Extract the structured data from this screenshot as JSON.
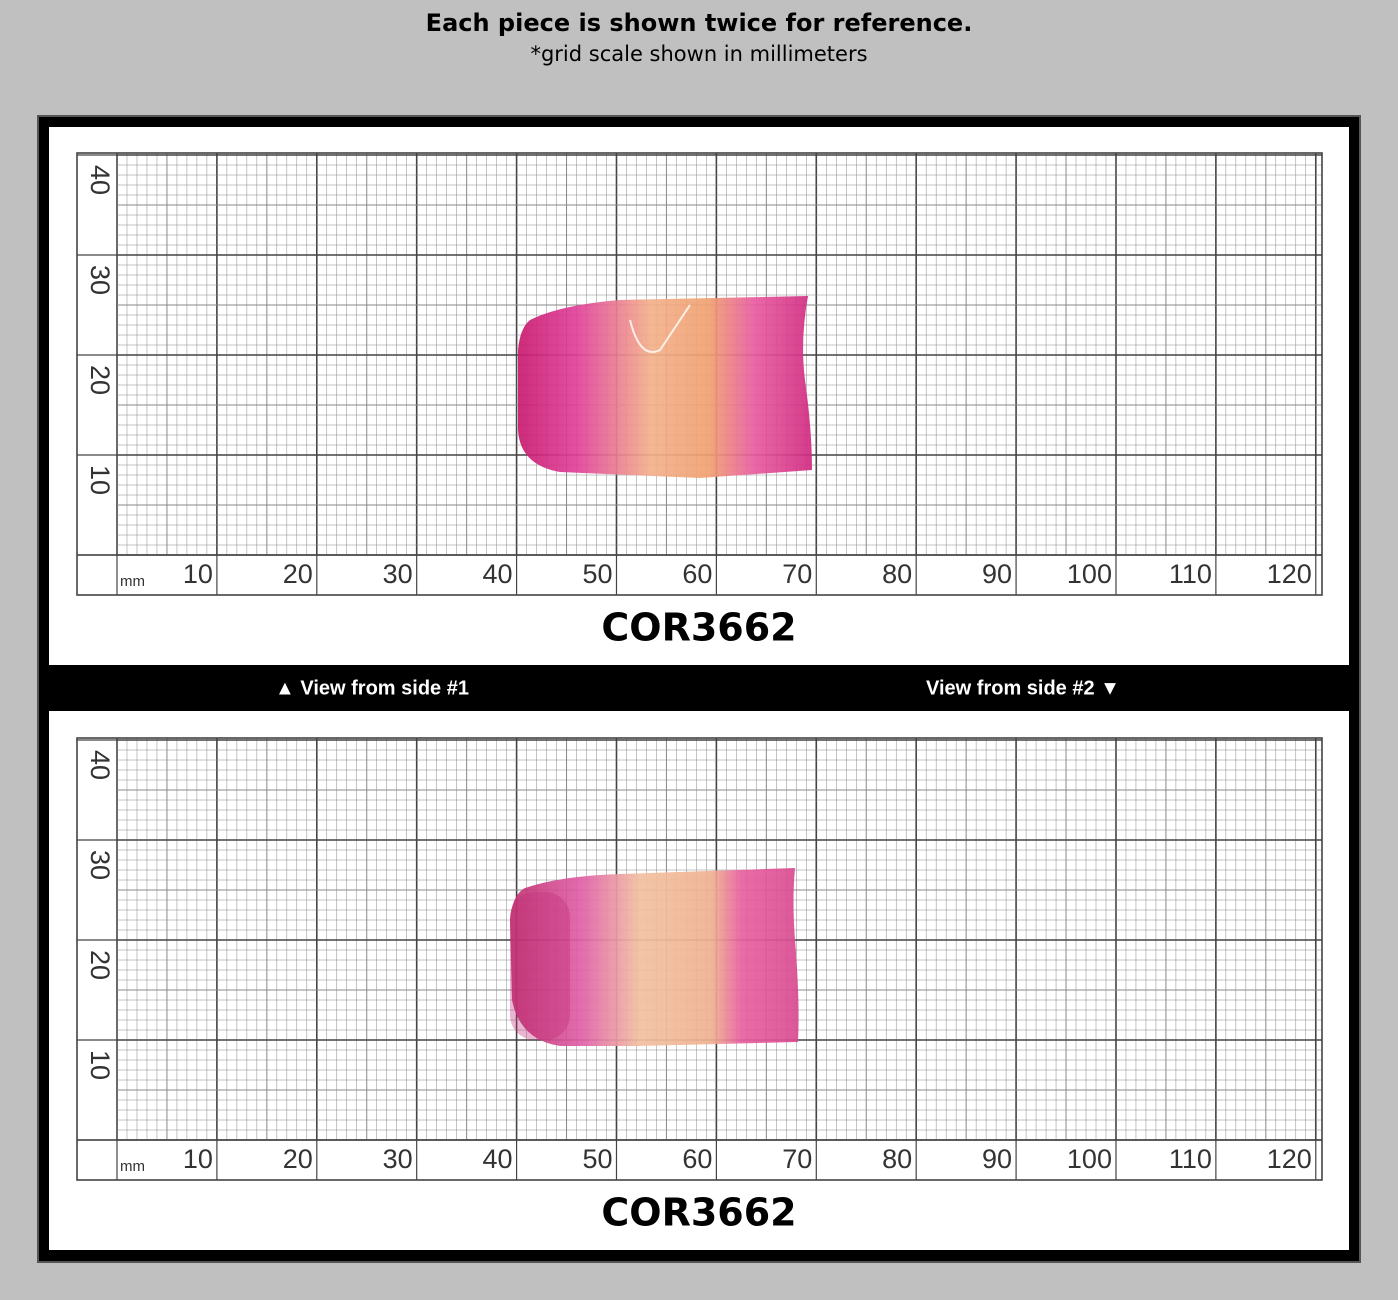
{
  "header": {
    "title": "Each piece is shown twice for reference.",
    "subtitle": "*grid scale shown in millimeters"
  },
  "panels": [
    {
      "code": "COR3662",
      "x_unit": "mm",
      "x_labels": [
        10,
        20,
        30,
        40,
        50,
        60,
        70,
        80,
        90,
        100,
        110,
        120
      ],
      "y_labels": [
        10,
        20,
        30,
        40
      ]
    },
    {
      "code": "COR3662",
      "x_unit": "mm",
      "x_labels": [
        10,
        20,
        30,
        40,
        50,
        60,
        70,
        80,
        90,
        100,
        110,
        120
      ],
      "y_labels": [
        10,
        20,
        30,
        40
      ]
    }
  ],
  "side_labels": {
    "left": "▲ View from side #1",
    "right": "View from side #2 ▼"
  }
}
